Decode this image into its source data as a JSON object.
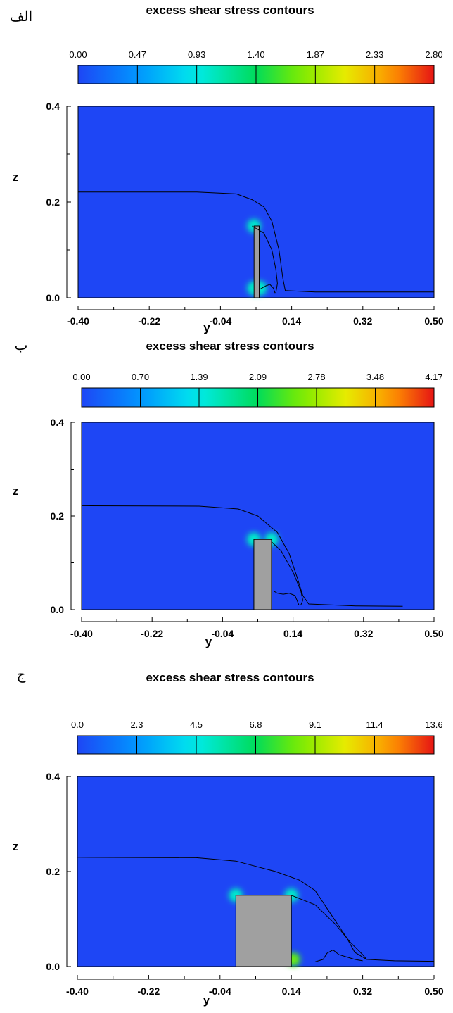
{
  "chart_data": [
    {
      "type": "heatmap",
      "panel_label": "الف",
      "title": "excess shear stress contours",
      "colorbar_ticks": [
        "0.00",
        "0.47",
        "0.93",
        "1.40",
        "1.87",
        "2.33",
        "2.80"
      ],
      "colorbar_range": [
        0.0,
        2.8
      ],
      "xlabel": "y",
      "ylabel": "z",
      "xticks": [
        "-0.40",
        "-0.22",
        "-0.04",
        "0.14",
        "0.32",
        "0.50"
      ],
      "yticks": [
        "0.0",
        "0.2",
        "0.4"
      ],
      "xlim": [
        -0.4,
        0.5
      ],
      "ylim": [
        0.0,
        0.4
      ],
      "obstacle": {
        "y_start": 0.045,
        "y_end": 0.058,
        "z_top": 0.15
      },
      "hot_spots": [
        {
          "y": 0.045,
          "z": 0.15,
          "value": 0.93
        },
        {
          "y": 0.045,
          "z": 0.02,
          "value": 0.93
        },
        {
          "y": 0.06,
          "z": 0.02,
          "value": 0.93
        }
      ],
      "free_surface": [
        [
          -0.4,
          0.221
        ],
        [
          -0.1,
          0.221
        ],
        [
          0.0,
          0.217
        ],
        [
          0.04,
          0.205
        ],
        [
          0.07,
          0.19
        ],
        [
          0.09,
          0.16
        ],
        [
          0.108,
          0.1
        ],
        [
          0.118,
          0.04
        ],
        [
          0.124,
          0.015
        ],
        [
          0.2,
          0.012
        ],
        [
          0.5,
          0.012
        ]
      ],
      "wake_line": [
        [
          0.04,
          0.15
        ],
        [
          0.07,
          0.135
        ],
        [
          0.09,
          0.1
        ],
        [
          0.1,
          0.06
        ],
        [
          0.104,
          0.03
        ],
        [
          0.1,
          0.01
        ]
      ],
      "vortex_line": [
        [
          0.06,
          0.018
        ],
        [
          0.075,
          0.025
        ],
        [
          0.085,
          0.028
        ],
        [
          0.094,
          0.02
        ],
        [
          0.098,
          0.01
        ]
      ]
    },
    {
      "type": "heatmap",
      "panel_label": "ب",
      "title": "excess shear stress contours",
      "colorbar_ticks": [
        "0.00",
        "0.70",
        "1.39",
        "2.09",
        "2.78",
        "3.48",
        "4.17"
      ],
      "colorbar_range": [
        0.0,
        4.17
      ],
      "xlabel": "y",
      "ylabel": "z",
      "xticks": [
        "-0.40",
        "-0.22",
        "-0.04",
        "0.14",
        "0.32",
        "0.50"
      ],
      "yticks": [
        "0.0",
        "0.2",
        "0.4"
      ],
      "xlim": [
        -0.4,
        0.5
      ],
      "ylim": [
        0.0,
        0.4
      ],
      "obstacle": {
        "y_start": 0.04,
        "y_end": 0.085,
        "z_top": 0.15
      },
      "hot_spots": [
        {
          "y": 0.04,
          "z": 0.15,
          "value": 1.39
        },
        {
          "y": 0.085,
          "z": 0.15,
          "value": 1.39
        }
      ],
      "free_surface": [
        [
          -0.4,
          0.222
        ],
        [
          -0.1,
          0.221
        ],
        [
          0.0,
          0.215
        ],
        [
          0.05,
          0.2
        ],
        [
          0.1,
          0.165
        ],
        [
          0.13,
          0.12
        ],
        [
          0.15,
          0.07
        ],
        [
          0.165,
          0.03
        ],
        [
          0.18,
          0.012
        ],
        [
          0.3,
          0.008
        ],
        [
          0.42,
          0.007
        ]
      ],
      "wake_line": [
        [
          0.085,
          0.145
        ],
        [
          0.11,
          0.125
        ],
        [
          0.14,
          0.08
        ],
        [
          0.16,
          0.04
        ],
        [
          0.165,
          0.02
        ],
        [
          0.16,
          0.01
        ]
      ],
      "vortex_line": [
        [
          0.09,
          0.04
        ],
        [
          0.1,
          0.035
        ],
        [
          0.115,
          0.033
        ],
        [
          0.13,
          0.035
        ],
        [
          0.145,
          0.03
        ],
        [
          0.15,
          0.02
        ],
        [
          0.155,
          0.01
        ]
      ]
    },
    {
      "type": "heatmap",
      "panel_label": "ج",
      "title": "excess shear stress contours",
      "colorbar_ticks": [
        "0.0",
        "2.3",
        "4.5",
        "6.8",
        "9.1",
        "11.4",
        "13.6"
      ],
      "colorbar_range": [
        0.0,
        13.6
      ],
      "xlabel": "y",
      "ylabel": "z",
      "xticks": [
        "-0.40",
        "-0.22",
        "-0.04",
        "0.14",
        "0.32",
        "0.50"
      ],
      "yticks": [
        "0.0",
        "0.2",
        "0.4"
      ],
      "xlim": [
        -0.4,
        0.5
      ],
      "ylim": [
        0.0,
        0.4
      ],
      "obstacle": {
        "y_start": 0.0,
        "y_end": 0.14,
        "z_top": 0.15
      },
      "hot_spots": [
        {
          "y": 0.0,
          "z": 0.15,
          "value": 4.5
        },
        {
          "y": 0.14,
          "z": 0.15,
          "value": 4.5
        },
        {
          "y": 0.145,
          "z": 0.015,
          "value": 9.1
        }
      ],
      "free_surface": [
        [
          -0.4,
          0.23
        ],
        [
          -0.1,
          0.229
        ],
        [
          0.0,
          0.222
        ],
        [
          0.1,
          0.2
        ],
        [
          0.16,
          0.182
        ],
        [
          0.2,
          0.16
        ],
        [
          0.24,
          0.11
        ],
        [
          0.28,
          0.06
        ],
        [
          0.3,
          0.03
        ],
        [
          0.33,
          0.015
        ],
        [
          0.4,
          0.012
        ],
        [
          0.5,
          0.011
        ]
      ],
      "wake_line": [
        [
          0.14,
          0.15
        ],
        [
          0.2,
          0.13
        ],
        [
          0.25,
          0.09
        ],
        [
          0.29,
          0.05
        ],
        [
          0.32,
          0.025
        ],
        [
          0.33,
          0.015
        ]
      ],
      "vortex_line": [
        [
          0.2,
          0.01
        ],
        [
          0.22,
          0.015
        ],
        [
          0.23,
          0.028
        ],
        [
          0.245,
          0.035
        ],
        [
          0.26,
          0.025
        ],
        [
          0.28,
          0.02
        ],
        [
          0.3,
          0.015
        ],
        [
          0.32,
          0.012
        ]
      ]
    }
  ]
}
